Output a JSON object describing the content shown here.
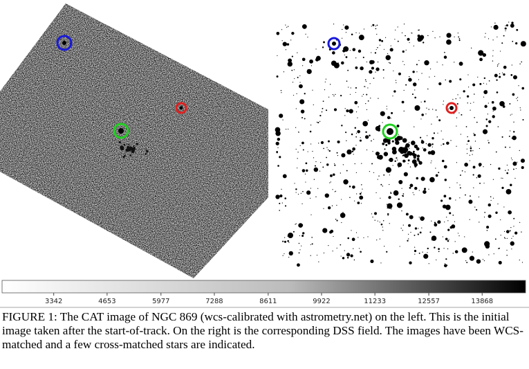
{
  "figure": {
    "colorbar": {
      "range": [
        2073,
        14934
      ],
      "ticks": [
        3342,
        4653,
        5977,
        7288,
        8611,
        9922,
        11233,
        12557,
        13868
      ]
    },
    "caption": "FIGURE 1: The CAT image of NGC 869 (wcs-calibrated with astrometry.net) on the left. This is the initial image taken after the start-of-track. On the right is the corresponding DSS field. The images have been WCS-matched and a few cross-matched stars are indicated."
  }
}
